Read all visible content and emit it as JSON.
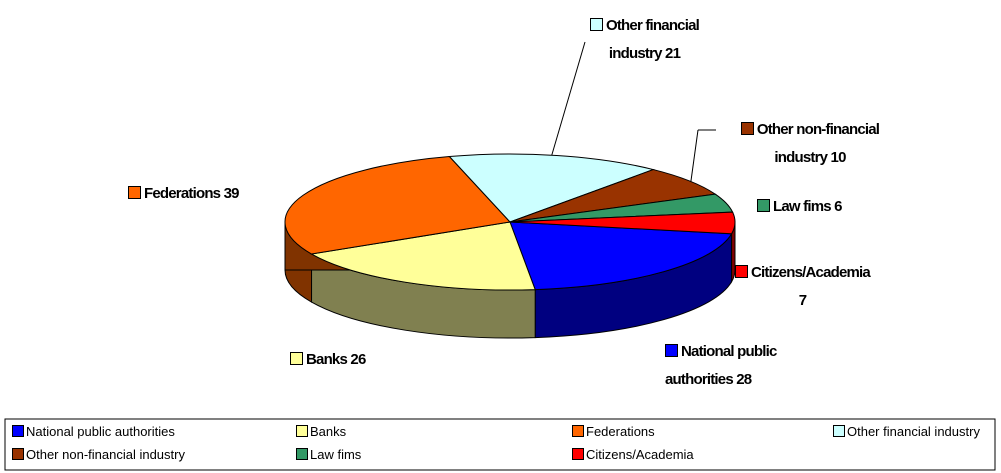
{
  "chart_data": {
    "type": "pie3d",
    "categories": [
      "National public authorities",
      "Banks",
      "Federations",
      "Other financial industry",
      "Other non-financial industry",
      "Law fims",
      "Citizens/Academia"
    ],
    "values": [
      28,
      26,
      39,
      21,
      10,
      6,
      7
    ],
    "colors": [
      "#0000ff",
      "#ffff99",
      "#ff6600",
      "#ccffff",
      "#993300",
      "#339966",
      "#ff0000"
    ],
    "side_colors": [
      "#000080",
      "#808050",
      "#803300",
      "#668080",
      "#4d1a00",
      "#1a4d33",
      "#800000"
    ],
    "legend": "bottom"
  }
}
